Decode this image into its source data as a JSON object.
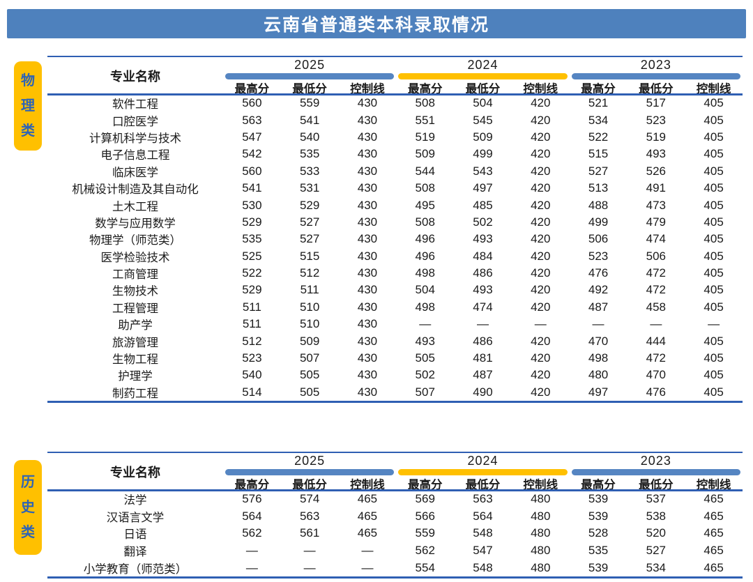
{
  "title": "云南省普通类本科录取情况",
  "colors": {
    "banner_blue": "#4e81bd",
    "rule_blue": "#2f5fb3",
    "category_badge_yellow": "#ffc000",
    "category_text_blue": "#2e64b5",
    "bar_blue": "#5585c2",
    "bar_yellow": "#ffc000"
  },
  "table": {
    "major_header": "专业名称",
    "years": [
      "2025",
      "2024",
      "2023"
    ],
    "year_bar_colors": [
      "#5585c2",
      "#ffc000",
      "#5585c2"
    ],
    "sub_headers": [
      "最高分",
      "最低分",
      "控制线"
    ]
  },
  "sections": [
    {
      "category": "物理类",
      "rows": [
        {
          "major": "软件工程",
          "values": [
            "560",
            "559",
            "430",
            "508",
            "504",
            "420",
            "521",
            "517",
            "405"
          ]
        },
        {
          "major": "口腔医学",
          "values": [
            "563",
            "541",
            "430",
            "551",
            "545",
            "420",
            "534",
            "523",
            "405"
          ]
        },
        {
          "major": "计算机科学与技术",
          "values": [
            "547",
            "540",
            "430",
            "519",
            "509",
            "420",
            "522",
            "519",
            "405"
          ]
        },
        {
          "major": "电子信息工程",
          "values": [
            "542",
            "535",
            "430",
            "509",
            "499",
            "420",
            "515",
            "493",
            "405"
          ]
        },
        {
          "major": "临床医学",
          "values": [
            "560",
            "533",
            "430",
            "544",
            "543",
            "420",
            "527",
            "526",
            "405"
          ]
        },
        {
          "major": "机械设计制造及其自动化",
          "values": [
            "541",
            "531",
            "430",
            "508",
            "497",
            "420",
            "513",
            "491",
            "405"
          ]
        },
        {
          "major": "土木工程",
          "values": [
            "530",
            "529",
            "430",
            "495",
            "485",
            "420",
            "488",
            "473",
            "405"
          ]
        },
        {
          "major": "数学与应用数学",
          "values": [
            "529",
            "527",
            "430",
            "508",
            "502",
            "420",
            "499",
            "479",
            "405"
          ]
        },
        {
          "major": "物理学（师范类）",
          "values": [
            "535",
            "527",
            "430",
            "496",
            "493",
            "420",
            "506",
            "474",
            "405"
          ]
        },
        {
          "major": "医学检验技术",
          "values": [
            "525",
            "515",
            "430",
            "496",
            "484",
            "420",
            "523",
            "506",
            "405"
          ]
        },
        {
          "major": "工商管理",
          "values": [
            "522",
            "512",
            "430",
            "498",
            "486",
            "420",
            "476",
            "472",
            "405"
          ]
        },
        {
          "major": "生物技术",
          "values": [
            "529",
            "511",
            "430",
            "504",
            "493",
            "420",
            "492",
            "472",
            "405"
          ]
        },
        {
          "major": "工程管理",
          "values": [
            "511",
            "510",
            "430",
            "498",
            "474",
            "420",
            "487",
            "458",
            "405"
          ]
        },
        {
          "major": "助产学",
          "values": [
            "511",
            "510",
            "430",
            "—",
            "—",
            "—",
            "—",
            "—",
            "—"
          ]
        },
        {
          "major": "旅游管理",
          "values": [
            "512",
            "509",
            "430",
            "493",
            "486",
            "420",
            "470",
            "444",
            "405"
          ]
        },
        {
          "major": "生物工程",
          "values": [
            "523",
            "507",
            "430",
            "505",
            "481",
            "420",
            "498",
            "472",
            "405"
          ]
        },
        {
          "major": "护理学",
          "values": [
            "540",
            "505",
            "430",
            "502",
            "487",
            "420",
            "480",
            "470",
            "405"
          ]
        },
        {
          "major": "制药工程",
          "values": [
            "514",
            "505",
            "430",
            "507",
            "490",
            "420",
            "497",
            "476",
            "405"
          ]
        }
      ]
    },
    {
      "category": "历史类",
      "rows": [
        {
          "major": "法学",
          "values": [
            "576",
            "574",
            "465",
            "569",
            "563",
            "480",
            "539",
            "537",
            "465"
          ]
        },
        {
          "major": "汉语言文学",
          "values": [
            "564",
            "563",
            "465",
            "566",
            "564",
            "480",
            "539",
            "538",
            "465"
          ]
        },
        {
          "major": "日语",
          "values": [
            "562",
            "561",
            "465",
            "559",
            "548",
            "480",
            "528",
            "520",
            "465"
          ]
        },
        {
          "major": "翻译",
          "values": [
            "—",
            "—",
            "—",
            "562",
            "547",
            "480",
            "535",
            "527",
            "465"
          ]
        },
        {
          "major": "小学教育（师范类）",
          "values": [
            "—",
            "—",
            "—",
            "554",
            "548",
            "480",
            "539",
            "534",
            "465"
          ]
        }
      ]
    }
  ]
}
